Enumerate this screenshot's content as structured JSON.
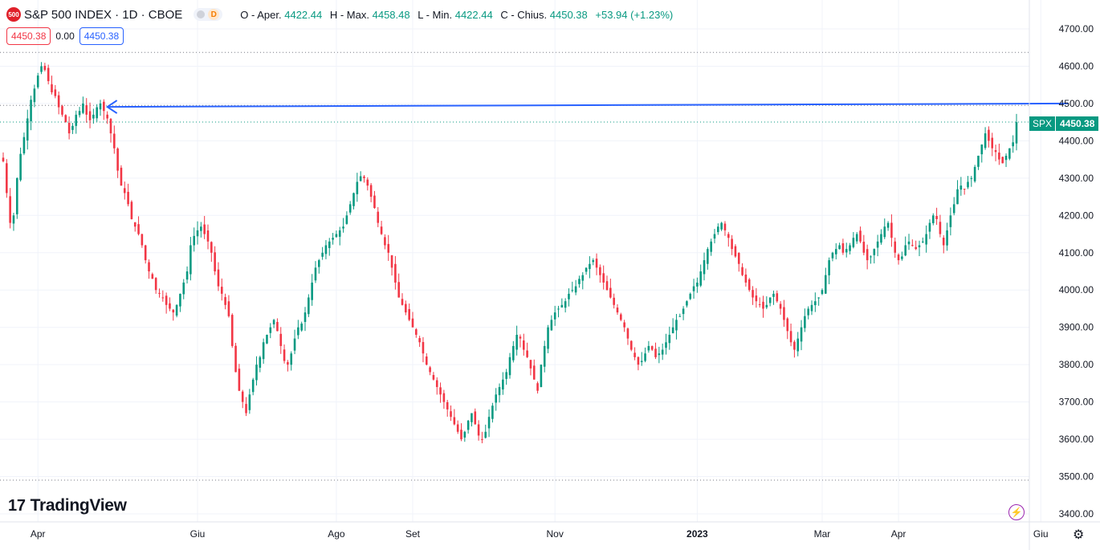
{
  "header": {
    "badge": "500",
    "title": "S&P 500 INDEX · 1D · CBOE",
    "pill_letter": "D",
    "ohlc": [
      {
        "k": "O - Aper.",
        "v": "4422.44"
      },
      {
        "k": "H - Max.",
        "v": "4458.48"
      },
      {
        "k": "L - Min.",
        "v": "4422.44"
      },
      {
        "k": "C - Chius.",
        "v": "4450.38"
      },
      {
        "k": "",
        "v": "+53.94 (+1.23%)"
      }
    ],
    "bid": "4450.38",
    "spread": "0.00",
    "ask": "4450.38"
  },
  "price_tag": {
    "symbol": "SPX",
    "value": "4450.38"
  },
  "logo": {
    "mark": "17",
    "text": "TradingView"
  },
  "colors": {
    "up": "#089981",
    "down": "#f23645",
    "trendline": "#2962ff",
    "grid": "#f0f3fa",
    "axis_text": "#131722"
  },
  "chart_data": {
    "type": "candlestick",
    "title": "S&P 500 INDEX · 1D · CBOE",
    "ylim": [
      3380,
      4720
    ],
    "y_ticks": [
      3400,
      3500,
      3600,
      3700,
      3800,
      3900,
      4000,
      4100,
      4200,
      4300,
      4400,
      4500,
      4600,
      4700
    ],
    "x_ticks": [
      {
        "label": "Apr",
        "index": 10
      },
      {
        "label": "Giu",
        "index": 56
      },
      {
        "label": "Ago",
        "index": 96
      },
      {
        "label": "Set",
        "index": 118
      },
      {
        "label": "Nov",
        "index": 159
      },
      {
        "label": "2023",
        "index": 200
      },
      {
        "label": "Mar",
        "index": 236
      },
      {
        "label": "Apr",
        "index": 258
      },
      {
        "label": "Giu",
        "index": 299
      }
    ],
    "horizontal_lines": [
      4637,
      4495
    ],
    "last_price_line": 4450.38,
    "trendline": {
      "from": {
        "index": 30,
        "value": 4491
      },
      "to": {
        "index": 307,
        "value": 4500
      }
    },
    "grid": true,
    "closes": [
      4345,
      4260,
      4180,
      4200,
      4300,
      4365,
      4410,
      4460,
      4510,
      4540,
      4575,
      4600,
      4590,
      4560,
      4530,
      4520,
      4490,
      4470,
      4450,
      4420,
      4440,
      4470,
      4480,
      4500,
      4470,
      4455,
      4470,
      4490,
      4500,
      4480,
      4460,
      4420,
      4380,
      4320,
      4280,
      4260,
      4230,
      4190,
      4170,
      4150,
      4120,
      4080,
      4050,
      4030,
      4000,
      3990,
      3980,
      3960,
      3950,
      3940,
      3960,
      3990,
      4020,
      4050,
      4120,
      4145,
      4160,
      4170,
      4150,
      4130,
      4100,
      4050,
      4010,
      3990,
      3960,
      3930,
      3850,
      3780,
      3730,
      3700,
      3670,
      3720,
      3760,
      3800,
      3820,
      3860,
      3880,
      3900,
      3920,
      3890,
      3850,
      3810,
      3800,
      3830,
      3870,
      3900,
      3910,
      3940,
      3980,
      4020,
      4060,
      4080,
      4100,
      4120,
      4130,
      4140,
      4150,
      4160,
      4170,
      4200,
      4230,
      4260,
      4290,
      4305,
      4300,
      4280,
      4250,
      4220,
      4180,
      4150,
      4120,
      4100,
      4060,
      4020,
      3980,
      3960,
      3940,
      3920,
      3900,
      3880,
      3860,
      3830,
      3800,
      3780,
      3760,
      3740,
      3720,
      3700,
      3680,
      3660,
      3640,
      3620,
      3600,
      3620,
      3650,
      3670,
      3640,
      3610,
      3600,
      3620,
      3660,
      3690,
      3720,
      3740,
      3760,
      3780,
      3820,
      3850,
      3880,
      3870,
      3840,
      3820,
      3790,
      3760,
      3730,
      3800,
      3850,
      3900,
      3920,
      3940,
      3950,
      3960,
      3970,
      3990,
      4000,
      4010,
      4030,
      4040,
      4060,
      4070,
      4080,
      4060,
      4040,
      4020,
      4000,
      3980,
      3960,
      3940,
      3920,
      3900,
      3870,
      3840,
      3820,
      3800,
      3810,
      3830,
      3850,
      3840,
      3820,
      3830,
      3840,
      3860,
      3880,
      3900,
      3920,
      3930,
      3950,
      3970,
      3990,
      4010,
      4020,
      4050,
      4080,
      4110,
      4130,
      4150,
      4170,
      4180,
      4160,
      4140,
      4110,
      4090,
      4070,
      4040,
      4020,
      4000,
      3980,
      3970,
      3960,
      3950,
      3960,
      3980,
      3990,
      3970,
      3950,
      3920,
      3890,
      3860,
      3840,
      3870,
      3900,
      3930,
      3950,
      3960,
      3970,
      3980,
      4000,
      4040,
      4080,
      4100,
      4110,
      4120,
      4100,
      4110,
      4120,
      4140,
      4150,
      4130,
      4100,
      4080,
      4090,
      4110,
      4130,
      4150,
      4170,
      4180,
      4140,
      4100,
      4080,
      4090,
      4120,
      4130,
      4120,
      4110,
      4120,
      4130,
      4150,
      4180,
      4200,
      4190,
      4150,
      4120,
      4160,
      4200,
      4230,
      4270,
      4280,
      4270,
      4290,
      4300,
      4330,
      4360,
      4390,
      4420,
      4400,
      4380,
      4370,
      4350,
      4340,
      4360,
      4380,
      4396,
      4450
    ]
  }
}
